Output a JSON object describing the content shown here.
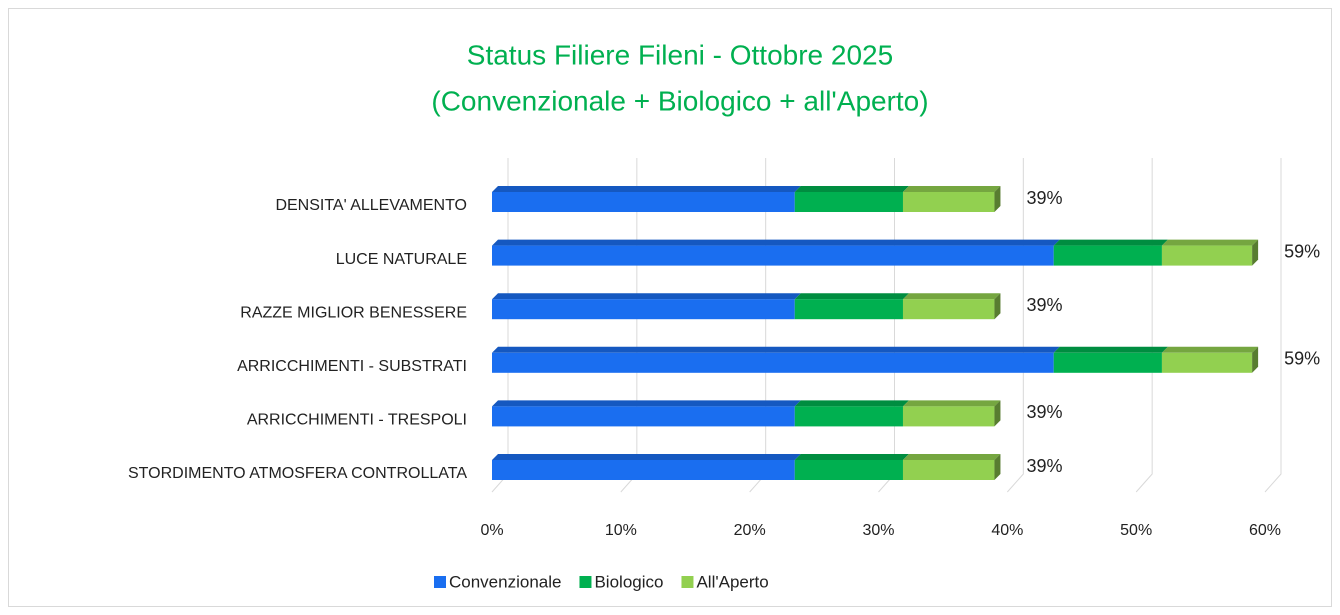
{
  "chart_data": {
    "type": "stacked_bar_horizontal",
    "title": [
      "Status Filiere Fileni - Ottobre 2025",
      "(Convenzionale + Biologico + all'Aperto)"
    ],
    "categories": [
      "DENSITA' ALLEVAMENTO",
      "LUCE NATURALE",
      "RAZZE MIGLIOR BENESSERE",
      "ARRICCHIMENTI - SUBSTRATI",
      "ARRICCHIMENTI - TRESPOLI",
      "STORDIMENTO ATMOSFERA CONTROLLATA"
    ],
    "series": [
      {
        "name": "Convenzionale",
        "color": "#1a6ef0",
        "values": [
          23.5,
          43.6,
          23.5,
          43.6,
          23.5,
          23.5
        ]
      },
      {
        "name": "Biologico",
        "color": "#00b050",
        "values": [
          8.4,
          8.4,
          8.4,
          8.4,
          8.4,
          8.4
        ]
      },
      {
        "name": "All'Aperto",
        "color": "#92d050",
        "values": [
          7.1,
          7.0,
          7.1,
          7.0,
          7.1,
          7.1
        ]
      }
    ],
    "totals": [
      39,
      59,
      39,
      59,
      39,
      39
    ],
    "total_labels": [
      "39%",
      "59%",
      "39%",
      "59%",
      "39%",
      "39%"
    ],
    "xlim": [
      0,
      60
    ],
    "xticks": [
      {
        "value": 0,
        "label": "0%"
      },
      {
        "value": 10,
        "label": "10%"
      },
      {
        "value": 20,
        "label": "20%"
      },
      {
        "value": 30,
        "label": "30%"
      },
      {
        "value": 40,
        "label": "40%"
      },
      {
        "value": 50,
        "label": "50%"
      },
      {
        "value": 60,
        "label": "60%"
      }
    ],
    "grid": true,
    "legend": "bottom"
  }
}
